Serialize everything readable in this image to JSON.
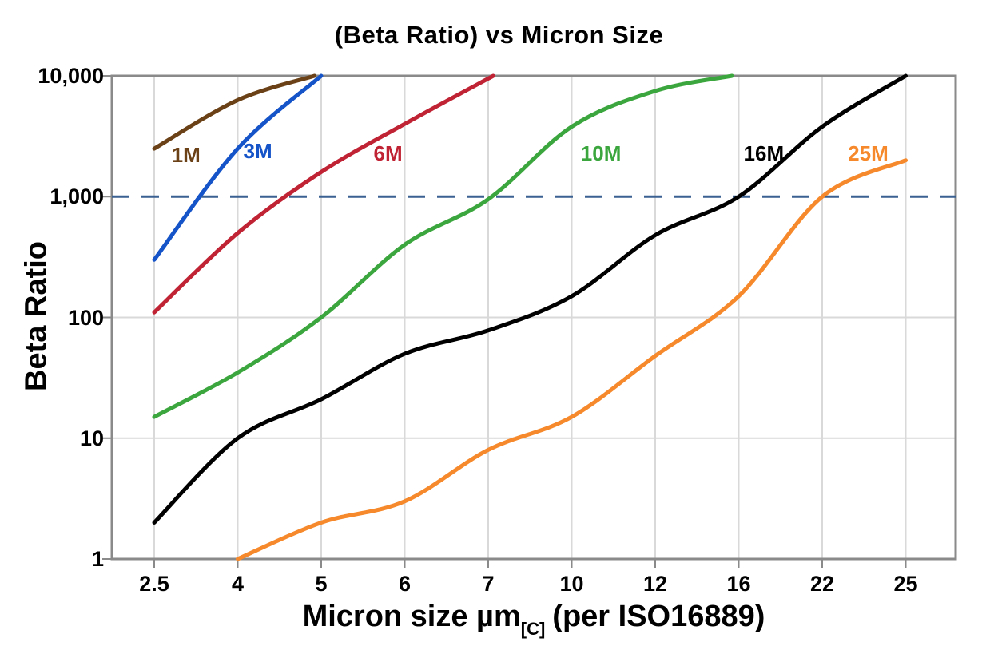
{
  "page": {
    "title": "(Beta Ratio) vs Micron Size"
  },
  "y_axis": {
    "label": "Beta Ratio",
    "ticks": [
      {
        "label": "10,000",
        "value": 10000
      },
      {
        "label": "1,000",
        "value": 1000
      },
      {
        "label": "100",
        "value": 100
      },
      {
        "label": "10",
        "value": 10
      },
      {
        "label": "1",
        "value": 1
      }
    ]
  },
  "x_axis": {
    "label_main": "Micron size µm",
    "label_sub": "[C]",
    "label_suffix": "(per ISO16889)",
    "ticks": [
      "2.5",
      "4",
      "5",
      "6",
      "7",
      "10",
      "12",
      "16",
      "22",
      "25"
    ]
  },
  "reference_line": {
    "value": 1000,
    "style": "dashed",
    "color": "#3A6191"
  },
  "chart_data": {
    "type": "line",
    "title": "(Beta Ratio) vs Micron Size",
    "xlabel": "Micron size µm[C] (per ISO16889)",
    "ylabel": "Beta Ratio",
    "x_scale": "categorical",
    "y_scale": "log",
    "ylim": [
      1,
      10000
    ],
    "grid": "on",
    "categories": [
      2.5,
      4,
      5,
      6,
      7,
      10,
      12,
      16,
      22,
      25
    ],
    "h_gridline_values": [
      10,
      100
    ],
    "series": [
      {
        "name": "1M",
        "color": "#6B4217",
        "points": [
          [
            0,
            2500
          ],
          [
            1,
            6300
          ],
          [
            1.92,
            10000
          ]
        ],
        "label_anchor": [
          0.38,
          2200
        ]
      },
      {
        "name": "3M",
        "color": "#1553C9",
        "points": [
          [
            0,
            300
          ],
          [
            1,
            2500
          ],
          [
            2,
            10000
          ]
        ],
        "label_anchor": [
          1.24,
          2400
        ]
      },
      {
        "name": "6M",
        "color": "#C02334",
        "points": [
          [
            0,
            110
          ],
          [
            1,
            500
          ],
          [
            2,
            1600
          ],
          [
            3,
            4000
          ],
          [
            4.06,
            10000
          ]
        ],
        "label_anchor": [
          2.8,
          2300
        ]
      },
      {
        "name": "10M",
        "color": "#3CA63E",
        "points": [
          [
            0,
            15
          ],
          [
            1,
            35
          ],
          [
            2,
            100
          ],
          [
            3,
            400
          ],
          [
            4,
            950
          ],
          [
            5,
            3800
          ],
          [
            6,
            7500
          ],
          [
            6.92,
            10000
          ]
        ],
        "label_anchor": [
          5.35,
          2300
        ]
      },
      {
        "name": "16M",
        "color": "#000000",
        "points": [
          [
            0,
            2
          ],
          [
            1,
            10
          ],
          [
            2,
            21
          ],
          [
            3,
            50
          ],
          [
            4,
            78
          ],
          [
            5,
            150
          ],
          [
            6,
            480
          ],
          [
            7,
            1000
          ],
          [
            8,
            3800
          ],
          [
            9,
            10000
          ]
        ],
        "label_anchor": [
          7.3,
          2300
        ]
      },
      {
        "name": "25M",
        "color": "#F6892B",
        "points": [
          [
            1,
            1
          ],
          [
            2,
            2
          ],
          [
            3,
            3
          ],
          [
            4,
            8
          ],
          [
            5,
            15
          ],
          [
            6,
            48
          ],
          [
            7,
            150
          ],
          [
            8,
            1000
          ],
          [
            9,
            2000
          ]
        ],
        "label_anchor": [
          8.55,
          2300
        ]
      }
    ]
  },
  "colors": {
    "axis": "#8A8A8A",
    "gridline": "#D9D9D9",
    "text": "#000000",
    "background": "#FFFFFF"
  }
}
